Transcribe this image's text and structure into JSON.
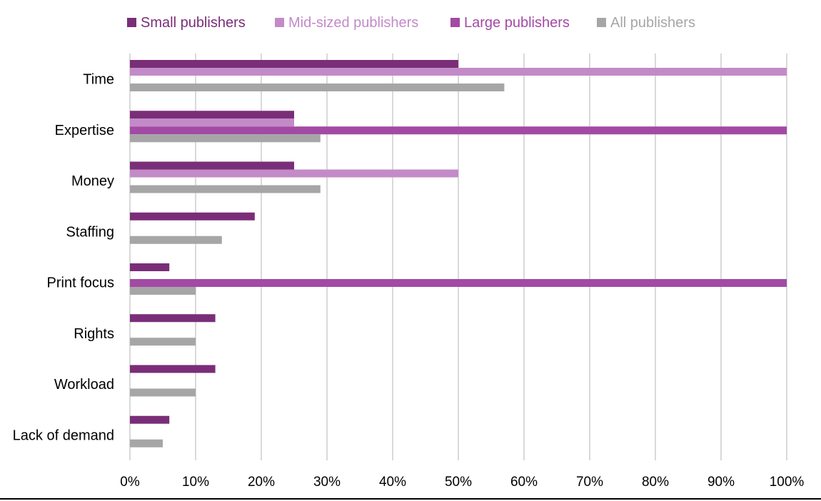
{
  "chart_data": {
    "type": "bar",
    "orientation": "horizontal",
    "title": "",
    "xlabel": "",
    "ylabel": "",
    "categories": [
      "Time",
      "Expertise",
      "Money",
      "Staffing",
      "Print focus",
      "Rights",
      "Workload",
      "Lack of demand"
    ],
    "series": [
      {
        "name": "Small publishers",
        "color": "#7a2e78",
        "values": [
          50,
          25,
          25,
          19,
          6,
          13,
          13,
          6
        ]
      },
      {
        "name": "Mid-sized publishers",
        "color": "#c38ac8",
        "values": [
          100,
          25,
          50,
          0,
          0,
          0,
          0,
          0
        ]
      },
      {
        "name": "Large publishers",
        "color": "#a24aa4",
        "values": [
          0,
          100,
          0,
          0,
          100,
          0,
          0,
          0
        ]
      },
      {
        "name": "All publishers",
        "color": "#a6a6a6",
        "values": [
          57,
          29,
          29,
          14,
          10,
          10,
          10,
          5
        ]
      }
    ],
    "x_ticks": [
      "0%",
      "10%",
      "20%",
      "30%",
      "40%",
      "50%",
      "60%",
      "70%",
      "80%",
      "90%",
      "100%"
    ],
    "xlim": [
      0,
      100
    ],
    "grid": "vertical",
    "legend": "top",
    "gridline_color": "#d9d9d9"
  }
}
